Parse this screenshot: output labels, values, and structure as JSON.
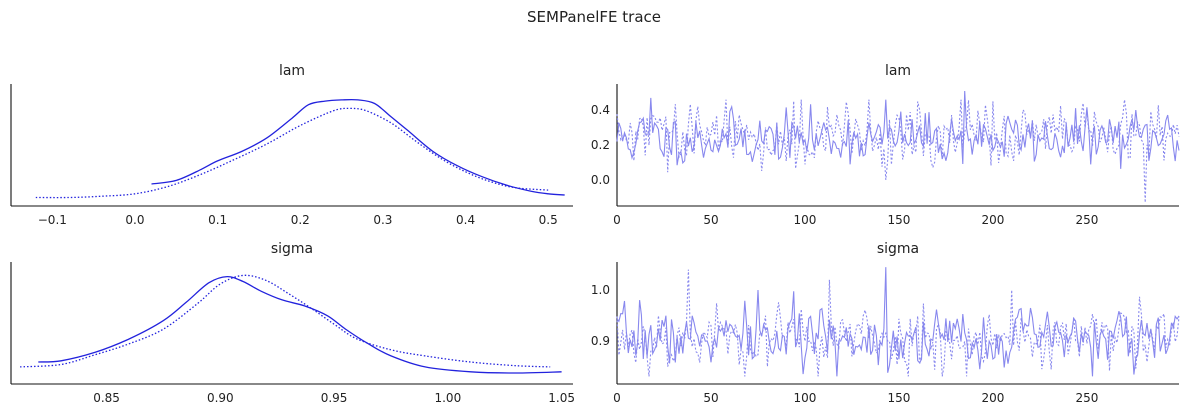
{
  "figure_title": "SEMPanelFE trace",
  "colors": {
    "chain": "#2222dd",
    "trace": "#8888ee",
    "axis": "#111111",
    "text": "#222222"
  },
  "chart_data": [
    {
      "id": "lam-density",
      "type": "line",
      "title": "lam",
      "xlabel": "",
      "ylabel": "",
      "xlim": [
        -0.15,
        0.53
      ],
      "x_ticks": [
        -0.1,
        0.0,
        0.1,
        0.2,
        0.3,
        0.4,
        0.5
      ],
      "x_tick_labels": [
        "−0.1",
        "0.0",
        "0.1",
        "0.2",
        "0.3",
        "0.4",
        "0.5"
      ],
      "y_ticks": [],
      "grid": false,
      "series": [
        {
          "style": "solid",
          "x": [
            0.02,
            0.05,
            0.08,
            0.1,
            0.13,
            0.16,
            0.19,
            0.21,
            0.23,
            0.25,
            0.27,
            0.29,
            0.31,
            0.33,
            0.36,
            0.39,
            0.42,
            0.45,
            0.48,
            0.5,
            0.52
          ],
          "y": [
            0.18,
            0.21,
            0.3,
            0.37,
            0.45,
            0.56,
            0.72,
            0.83,
            0.86,
            0.87,
            0.87,
            0.84,
            0.73,
            0.62,
            0.45,
            0.33,
            0.24,
            0.17,
            0.12,
            0.1,
            0.09
          ]
        },
        {
          "style": "dotted",
          "x": [
            -0.12,
            -0.08,
            -0.04,
            0.0,
            0.04,
            0.08,
            0.12,
            0.16,
            0.2,
            0.24,
            0.26,
            0.28,
            0.31,
            0.34,
            0.37,
            0.4,
            0.43,
            0.46,
            0.5
          ],
          "y": [
            0.07,
            0.07,
            0.08,
            0.1,
            0.16,
            0.26,
            0.38,
            0.51,
            0.66,
            0.78,
            0.8,
            0.78,
            0.68,
            0.53,
            0.39,
            0.28,
            0.2,
            0.15,
            0.13
          ]
        }
      ]
    },
    {
      "id": "lam-trace",
      "type": "line",
      "title": "lam",
      "xlabel": "",
      "ylabel": "",
      "xlim": [
        0,
        299
      ],
      "ylim": [
        -0.15,
        0.55
      ],
      "x_ticks": [
        0,
        50,
        100,
        150,
        200,
        250
      ],
      "y_ticks": [
        0.0,
        0.2,
        0.4
      ],
      "y_tick_labels": [
        "0.0",
        "0.2",
        "0.4"
      ],
      "grid": false,
      "series": [
        {
          "style": "solid",
          "n": 300,
          "mean": 0.24,
          "sd": 0.075,
          "seed": 11,
          "min": 0.0,
          "max": 0.51,
          "peaks": [
            [
              185,
              0.51
            ],
            [
              143,
              0.46
            ],
            [
              18,
              0.47
            ]
          ]
        },
        {
          "style": "dotted",
          "n": 300,
          "mean": 0.25,
          "sd": 0.095,
          "seed": 29,
          "min": -0.13,
          "max": 0.46,
          "peaks": [
            [
              281,
              -0.13
            ],
            [
              200,
              0.45
            ]
          ]
        }
      ]
    },
    {
      "id": "sigma-density",
      "type": "line",
      "title": "sigma",
      "xlabel": "",
      "ylabel": "",
      "xlim": [
        0.808,
        1.055
      ],
      "x_ticks": [
        0.85,
        0.9,
        0.95,
        1.0,
        1.05
      ],
      "x_tick_labels": [
        "0.85",
        "0.90",
        "0.95",
        "1.00",
        "1.05"
      ],
      "y_ticks": [],
      "grid": false,
      "series": [
        {
          "style": "solid",
          "x": [
            0.82,
            0.83,
            0.845,
            0.86,
            0.875,
            0.885,
            0.895,
            0.903,
            0.91,
            0.918,
            0.927,
            0.937,
            0.947,
            0.955,
            0.965,
            0.975,
            0.99,
            1.01,
            1.03,
            1.05
          ],
          "y": [
            0.18,
            0.19,
            0.26,
            0.37,
            0.52,
            0.67,
            0.83,
            0.88,
            0.84,
            0.76,
            0.69,
            0.64,
            0.56,
            0.45,
            0.33,
            0.23,
            0.14,
            0.1,
            0.09,
            0.1
          ]
        },
        {
          "style": "dotted",
          "x": [
            0.812,
            0.83,
            0.845,
            0.86,
            0.875,
            0.89,
            0.9,
            0.91,
            0.92,
            0.93,
            0.94,
            0.95,
            0.96,
            0.975,
            0.99,
            1.01,
            1.03,
            1.045
          ],
          "y": [
            0.14,
            0.16,
            0.24,
            0.33,
            0.45,
            0.66,
            0.82,
            0.89,
            0.85,
            0.74,
            0.62,
            0.49,
            0.37,
            0.28,
            0.23,
            0.18,
            0.15,
            0.14
          ]
        }
      ]
    },
    {
      "id": "sigma-trace",
      "type": "line",
      "title": "sigma",
      "xlabel": "",
      "ylabel": "",
      "xlim": [
        0,
        299
      ],
      "ylim": [
        0.815,
        1.055
      ],
      "x_ticks": [
        0,
        50,
        100,
        150,
        200,
        250
      ],
      "y_ticks": [
        0.9,
        1.0
      ],
      "y_tick_labels": [
        "0.9",
        "1.0"
      ],
      "grid": false,
      "series": [
        {
          "style": "solid",
          "n": 300,
          "mean": 0.905,
          "sd": 0.028,
          "seed": 7,
          "min": 0.83,
          "max": 1.045,
          "peaks": [
            [
              143,
              1.045
            ],
            [
              75,
              1.0
            ],
            [
              12,
              0.98
            ]
          ]
        },
        {
          "style": "dotted",
          "n": 300,
          "mean": 0.905,
          "sd": 0.032,
          "seed": 53,
          "min": 0.83,
          "max": 1.04,
          "peaks": [
            [
              38,
              1.04
            ],
            [
              113,
              1.02
            ],
            [
              210,
              1.0
            ]
          ]
        }
      ]
    }
  ]
}
